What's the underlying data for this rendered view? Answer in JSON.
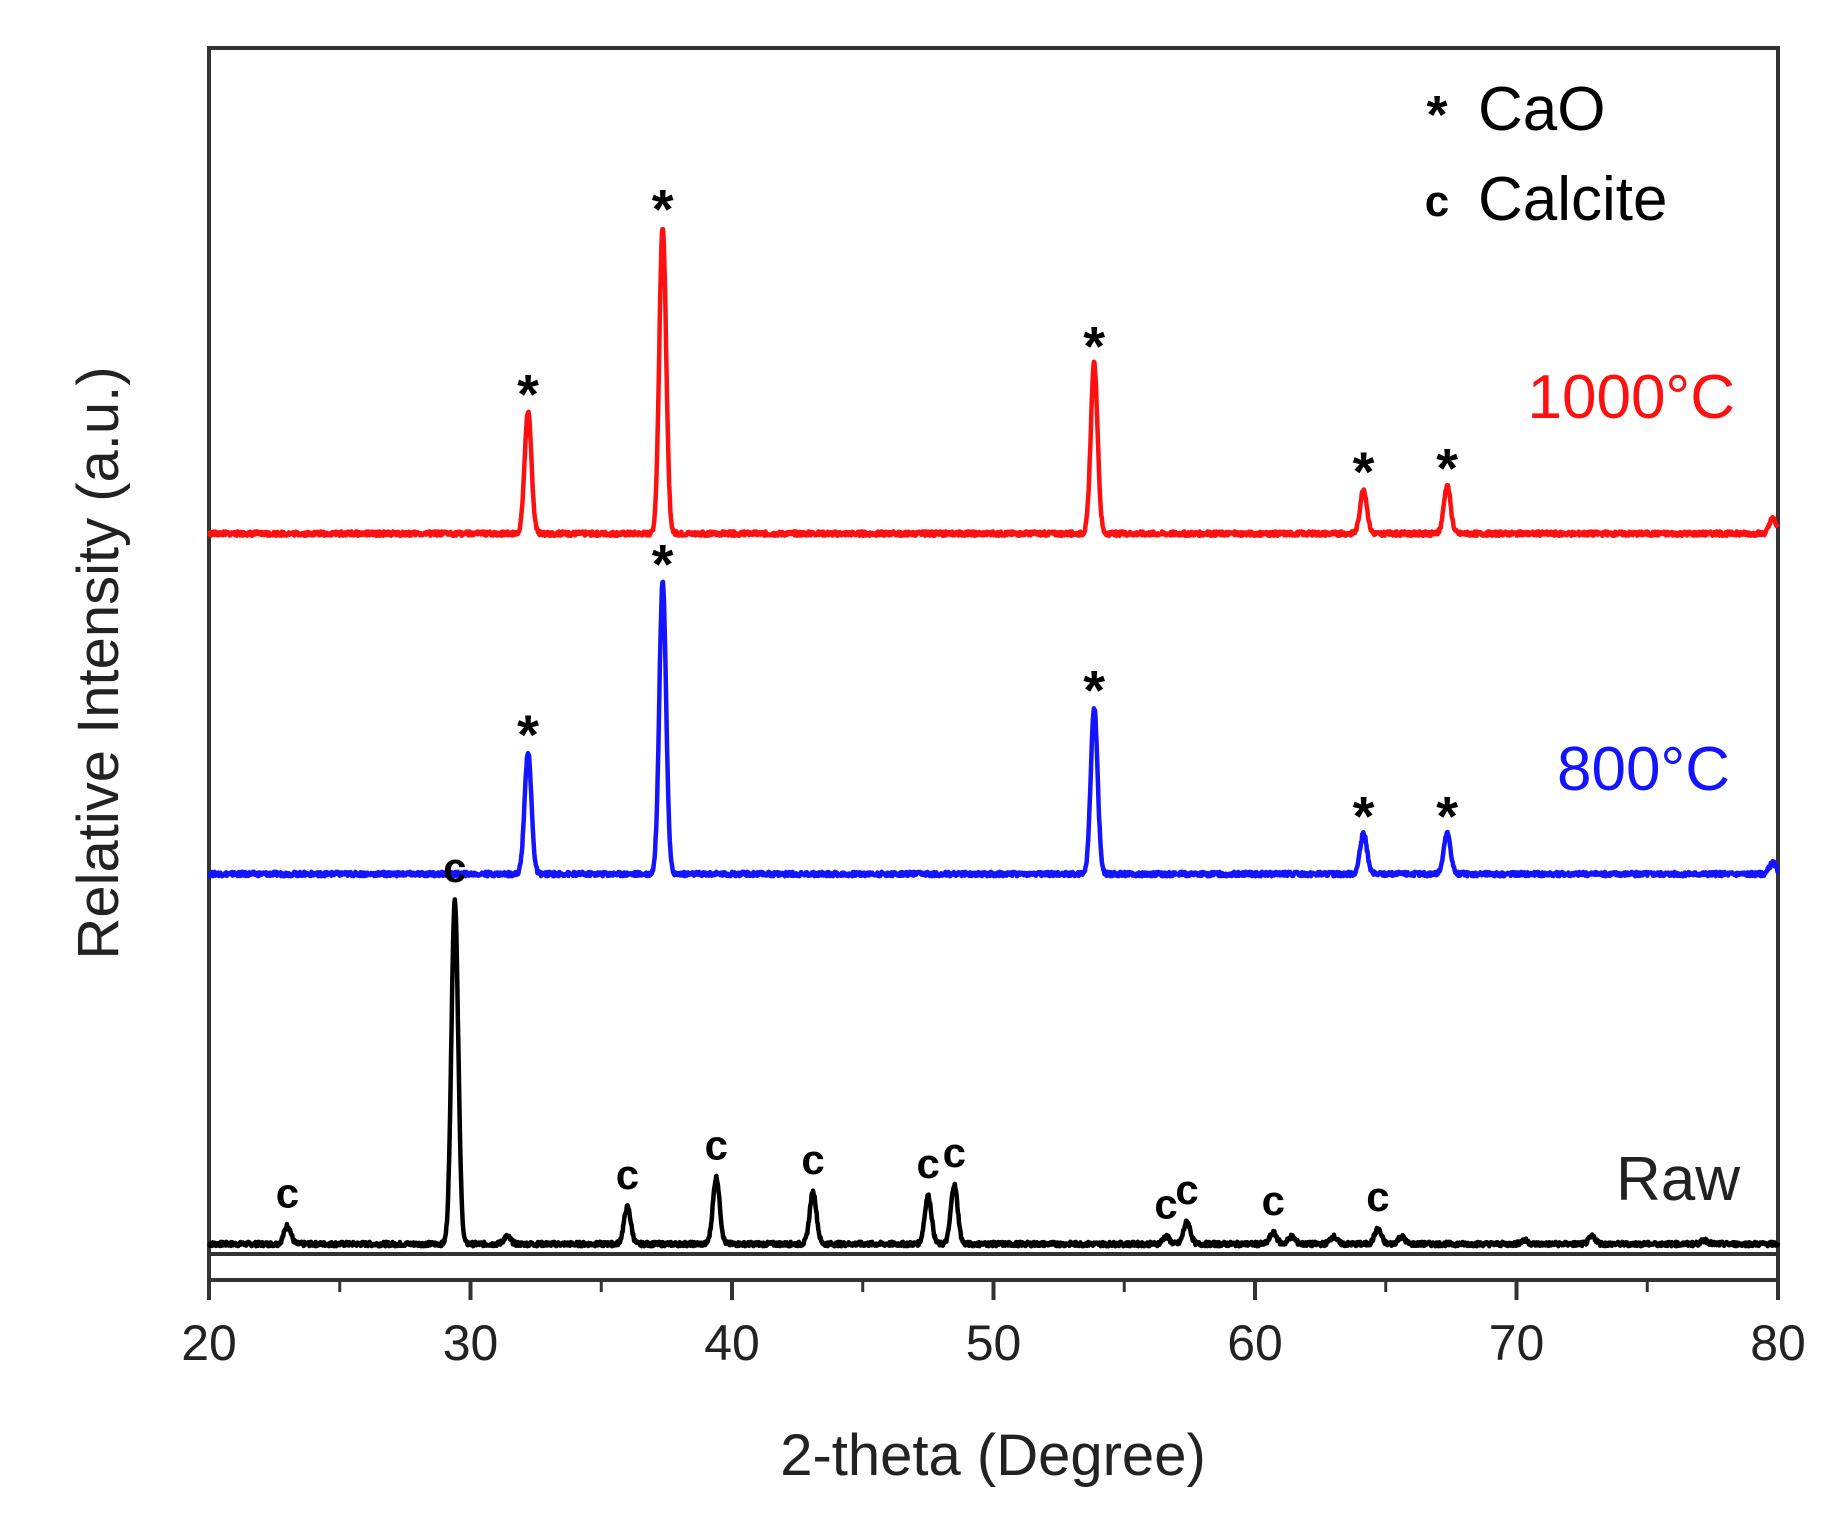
{
  "chart_data": {
    "type": "line",
    "title": "",
    "xlabel": "2-theta (Degree)",
    "ylabel": "Relative Intensity (a.u.)",
    "xlim": [
      20,
      80
    ],
    "xticks": [
      20,
      30,
      40,
      50,
      60,
      70,
      80
    ],
    "xtick_labels": [
      "20",
      "30",
      "40",
      "50",
      "60",
      "70",
      "80"
    ],
    "y_scale": "arbitrary, stacked with offsets",
    "legend": {
      "position": "top-right",
      "entries": [
        {
          "symbol": "*",
          "label": "CaO"
        },
        {
          "symbol": "c",
          "label": "Calcite"
        }
      ]
    },
    "series": [
      {
        "name": "Raw",
        "color": "#000000",
        "baseline": 0,
        "peaks": [
          {
            "x": 23.0,
            "h": 0.05
          },
          {
            "x": 29.4,
            "h": 0.93
          },
          {
            "x": 31.4,
            "h": 0.02
          },
          {
            "x": 36.0,
            "h": 0.1
          },
          {
            "x": 39.4,
            "h": 0.18
          },
          {
            "x": 43.1,
            "h": 0.14
          },
          {
            "x": 47.5,
            "h": 0.13
          },
          {
            "x": 48.5,
            "h": 0.16
          },
          {
            "x": 56.6,
            "h": 0.02
          },
          {
            "x": 57.4,
            "h": 0.06
          },
          {
            "x": 60.7,
            "h": 0.03
          },
          {
            "x": 61.4,
            "h": 0.02
          },
          {
            "x": 63.0,
            "h": 0.02
          },
          {
            "x": 64.7,
            "h": 0.04
          },
          {
            "x": 65.6,
            "h": 0.02
          },
          {
            "x": 70.3,
            "h": 0.01
          },
          {
            "x": 72.9,
            "h": 0.02
          },
          {
            "x": 77.2,
            "h": 0.01
          }
        ],
        "markers": [
          {
            "x": 23.0,
            "symbol": "c",
            "peak_h": 0.05
          },
          {
            "x": 29.4,
            "symbol": "c",
            "peak_h": 0.93
          },
          {
            "x": 36.0,
            "symbol": "c",
            "peak_h": 0.1
          },
          {
            "x": 39.4,
            "symbol": "c",
            "peak_h": 0.18
          },
          {
            "x": 43.1,
            "symbol": "c",
            "peak_h": 0.14
          },
          {
            "x": 47.5,
            "symbol": "c",
            "peak_h": 0.13
          },
          {
            "x": 48.5,
            "symbol": "c",
            "peak_h": 0.16
          },
          {
            "x": 56.6,
            "symbol": "c",
            "peak_h": 0.02
          },
          {
            "x": 57.4,
            "symbol": "c",
            "peak_h": 0.06
          },
          {
            "x": 60.7,
            "symbol": "c",
            "peak_h": 0.03
          },
          {
            "x": 64.7,
            "symbol": "c",
            "peak_h": 0.04
          }
        ]
      },
      {
        "name": "800°C",
        "color": "#1414ff",
        "baseline": 1.0,
        "peaks": [
          {
            "x": 32.2,
            "h": 0.33
          },
          {
            "x": 37.35,
            "h": 0.79
          },
          {
            "x": 53.85,
            "h": 0.45
          },
          {
            "x": 64.15,
            "h": 0.11
          },
          {
            "x": 67.35,
            "h": 0.11
          },
          {
            "x": 79.8,
            "h": 0.03
          }
        ],
        "markers": [
          {
            "x": 32.2,
            "symbol": "*",
            "peak_h": 0.33
          },
          {
            "x": 37.35,
            "symbol": "*",
            "peak_h": 0.79
          },
          {
            "x": 53.85,
            "symbol": "*",
            "peak_h": 0.45
          },
          {
            "x": 64.15,
            "symbol": "*",
            "peak_h": 0.11
          },
          {
            "x": 67.35,
            "symbol": "*",
            "peak_h": 0.11
          }
        ]
      },
      {
        "name": "1000°C",
        "color": "#ff1010",
        "baseline": 1.92,
        "peaks": [
          {
            "x": 32.2,
            "h": 0.33
          },
          {
            "x": 37.35,
            "h": 0.83
          },
          {
            "x": 53.85,
            "h": 0.46
          },
          {
            "x": 64.15,
            "h": 0.12
          },
          {
            "x": 67.35,
            "h": 0.13
          },
          {
            "x": 79.8,
            "h": 0.04
          }
        ],
        "markers": [
          {
            "x": 32.2,
            "symbol": "*",
            "peak_h": 0.33
          },
          {
            "x": 37.35,
            "symbol": "*",
            "peak_h": 0.83
          },
          {
            "x": 53.85,
            "symbol": "*",
            "peak_h": 0.46
          },
          {
            "x": 64.15,
            "symbol": "*",
            "peak_h": 0.12
          },
          {
            "x": 67.35,
            "symbol": "*",
            "peak_h": 0.13
          }
        ]
      }
    ]
  }
}
